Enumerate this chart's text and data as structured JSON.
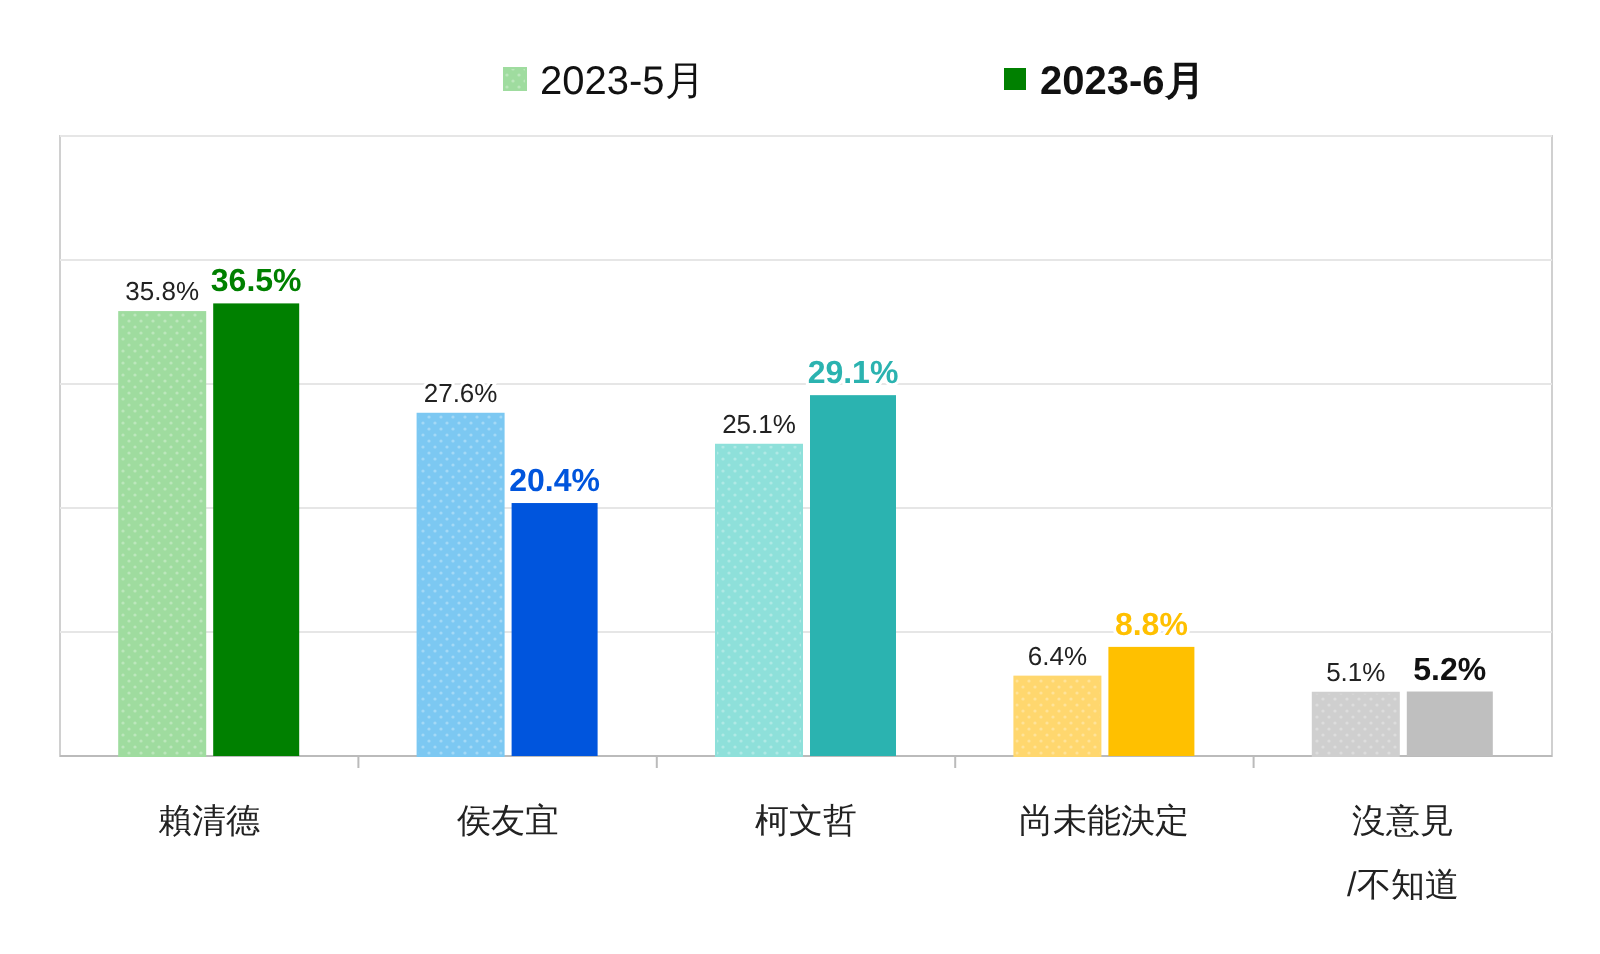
{
  "chart_data": {
    "type": "bar",
    "categories": [
      "賴清德",
      "侯友宜",
      "柯文哲",
      "尚未能決定",
      "沒意見\n/不知道"
    ],
    "series": [
      {
        "name": "2023-5月",
        "colors": [
          "#9fdc9f",
          "#7cc8f2",
          "#8ee0da",
          "#ffd76e",
          "#cfcfcf"
        ],
        "values": [
          35.8,
          27.6,
          25.1,
          6.4,
          5.1
        ],
        "value_labels": [
          "35.8%",
          "27.6%",
          "25.1%",
          "6.4%",
          "5.1%"
        ]
      },
      {
        "name": "2023-6月",
        "colors": [
          "#008000",
          "#0055dd",
          "#2bb3b0",
          "#ffc000",
          "#bfbfbf"
        ],
        "values": [
          36.5,
          20.4,
          29.1,
          8.8,
          5.2
        ],
        "value_labels": [
          "36.5%",
          "20.4%",
          "29.1%",
          "8.8%",
          "5.2%"
        ]
      }
    ],
    "ylim": [
      0,
      50
    ],
    "yticks": [
      {
        "value": 0,
        "label": null
      },
      {
        "value": 10,
        "label": null
      },
      {
        "value": 20,
        "label": null
      },
      {
        "value": 30,
        "label": null
      },
      {
        "value": 40,
        "label": null
      },
      {
        "value": 50,
        "label": null
      }
    ],
    "tick_labels": "x",
    "grid": "y",
    "legend": "top"
  }
}
